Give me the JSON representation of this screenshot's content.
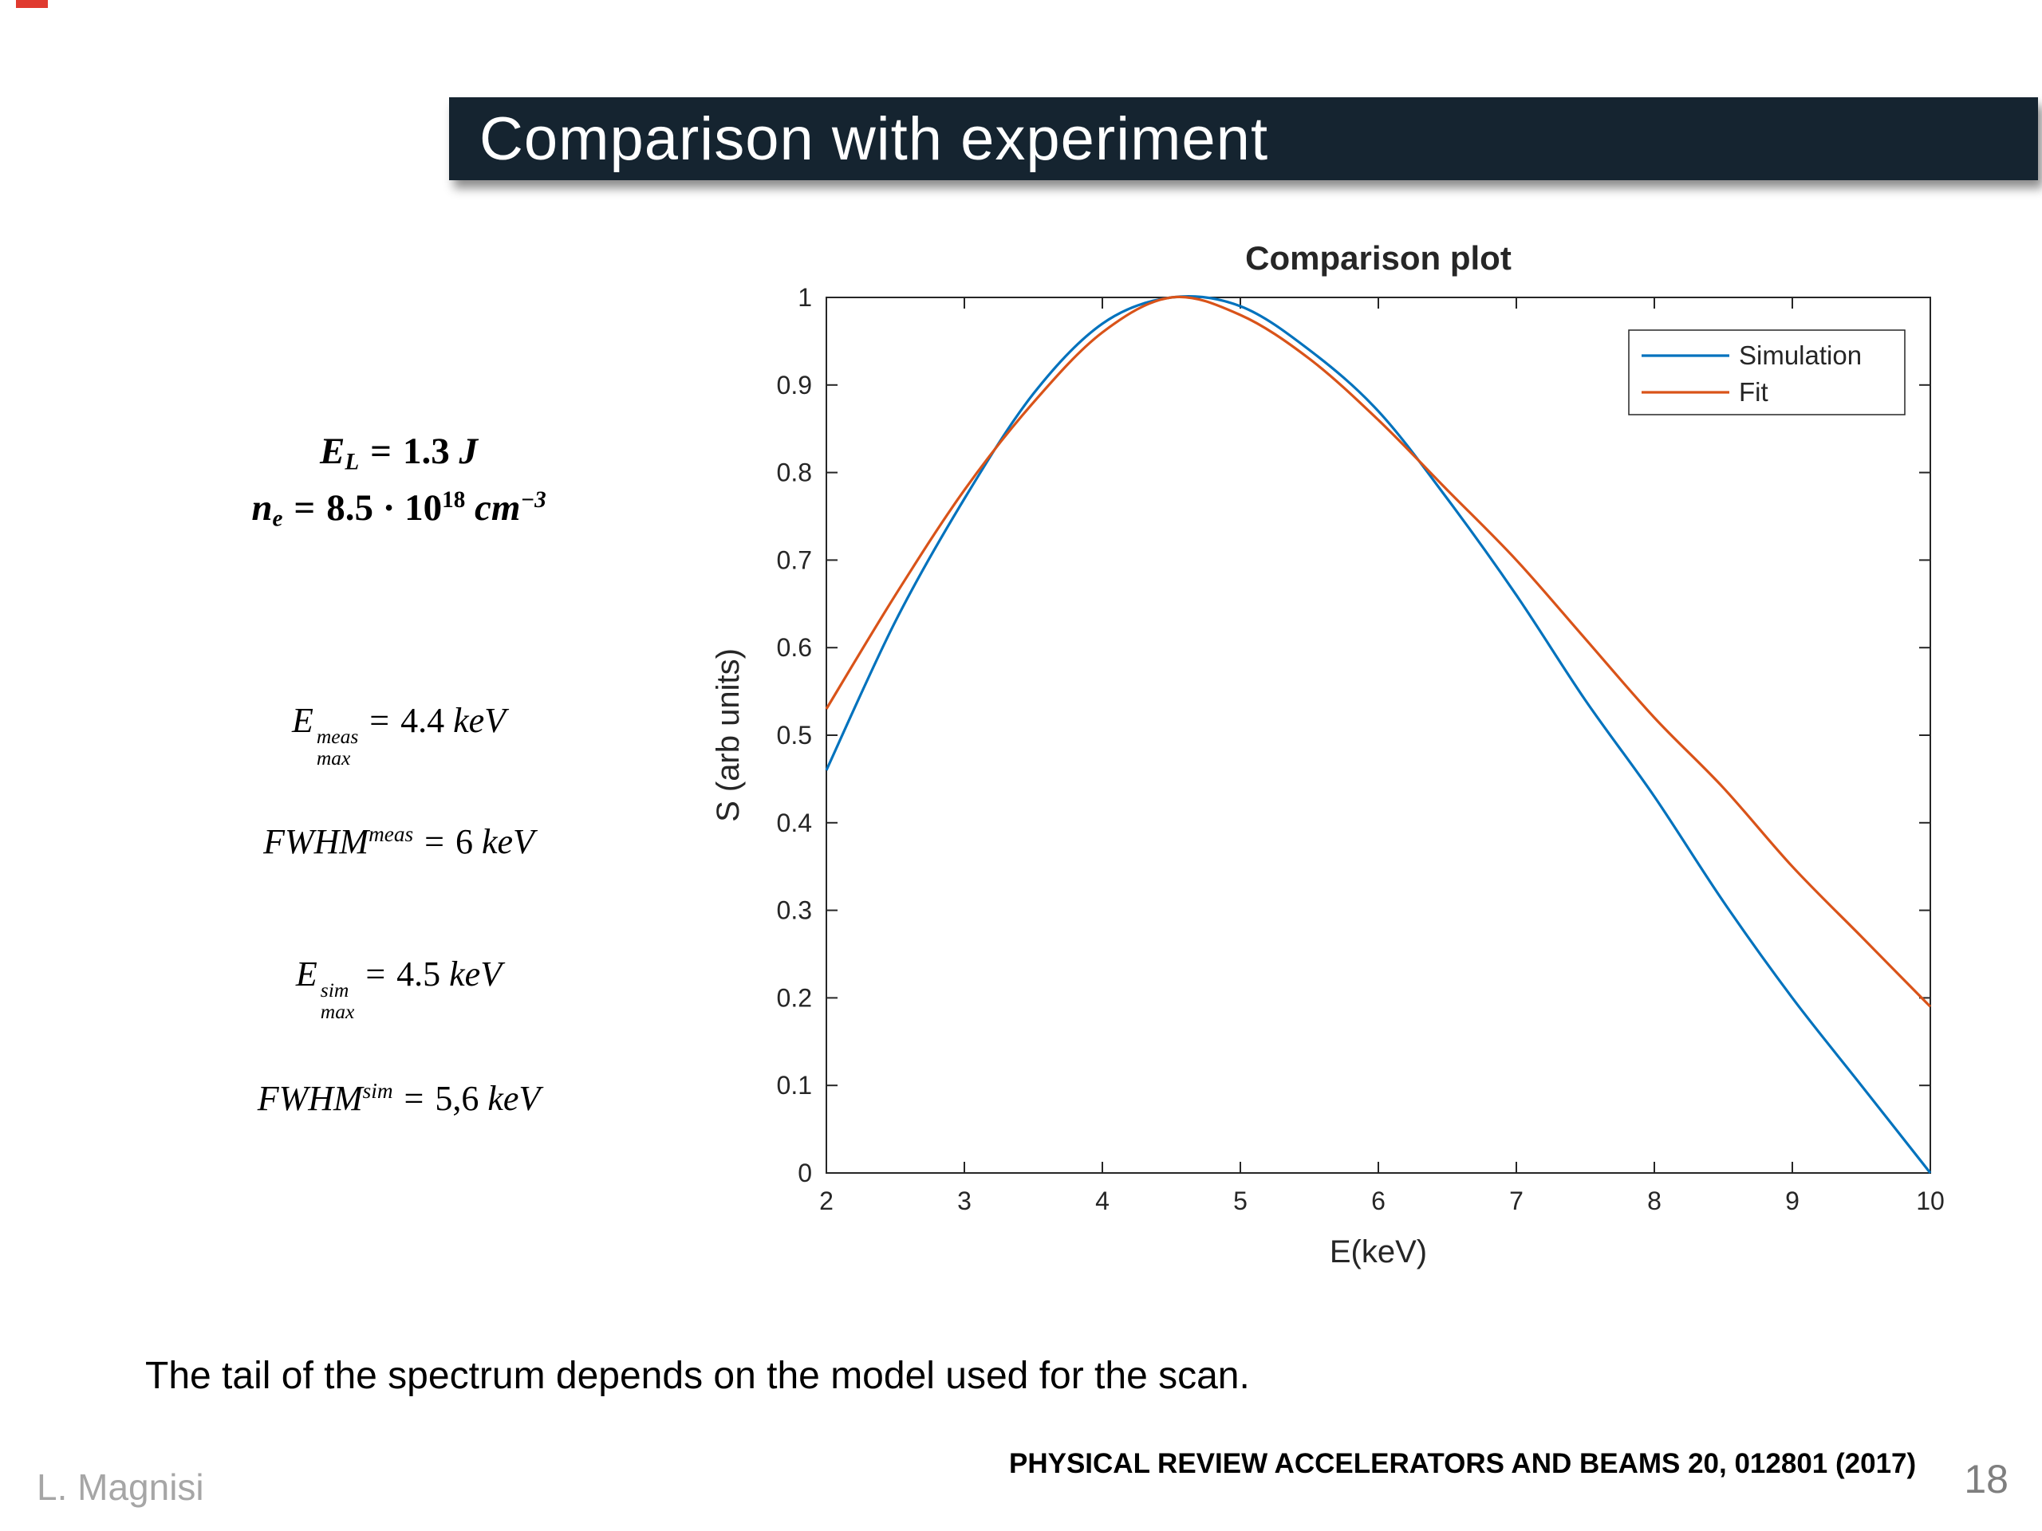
{
  "slide": {
    "title": "Comparison with experiment",
    "caption": "The tail of the spectrum depends on the model used for the scan.",
    "footer_left": "L. Magnisi",
    "footer_reference": "PHYSICAL REVIEW ACCELERATORS AND BEAMS 20, 012801 (2017)",
    "page_number": "18"
  },
  "equations": {
    "laser_energy": {
      "base": "E",
      "sub": "L",
      "eq": "=",
      "value": "1.3",
      "unit": "J"
    },
    "electron_density": {
      "base": "n",
      "sub": "e",
      "eq": "=",
      "value": "8.5 · 10",
      "exp": "18",
      "unit": "cm",
      "unit_exp": "−3"
    },
    "emax_meas": {
      "base": "E",
      "sup": "meas",
      "sub": "max",
      "eq": "=",
      "value": "4.4",
      "unit": "keV"
    },
    "fwhm_meas": {
      "base": "FWHM",
      "sup": "meas",
      "eq": "=",
      "value": "6",
      "unit": "keV"
    },
    "emax_sim": {
      "base": "E",
      "sup": "sim",
      "sub": "max",
      "eq": "=",
      "value": "4.5",
      "unit": "keV"
    },
    "fwhm_sim": {
      "base": "FWHM",
      "sup": "sim",
      "eq": "=",
      "value": "5,6",
      "unit": "keV"
    }
  },
  "chart_data": {
    "type": "line",
    "title": "Comparison plot",
    "xlabel": "E(keV)",
    "ylabel": "S (arb units)",
    "xlim": [
      2,
      10
    ],
    "ylim": [
      0,
      1
    ],
    "xticks": [
      2,
      3,
      4,
      5,
      6,
      7,
      8,
      9,
      10
    ],
    "yticks": [
      0,
      0.1,
      0.2,
      0.3,
      0.4,
      0.5,
      0.6,
      0.7,
      0.8,
      0.9,
      1
    ],
    "grid": false,
    "legend_position": "northeast",
    "x": [
      2,
      2.5,
      3,
      3.5,
      4,
      4.5,
      5,
      5.5,
      6,
      6.5,
      7,
      7.5,
      8,
      8.5,
      9,
      9.5,
      10
    ],
    "series": [
      {
        "name": "Simulation",
        "color": "#0072BD",
        "values": [
          0.46,
          0.63,
          0.77,
          0.89,
          0.97,
          1.0,
          0.99,
          0.94,
          0.87,
          0.77,
          0.66,
          0.54,
          0.43,
          0.31,
          0.2,
          0.1,
          0.0
        ]
      },
      {
        "name": "Fit",
        "color": "#D95319",
        "values": [
          0.53,
          0.66,
          0.78,
          0.88,
          0.96,
          1.0,
          0.98,
          0.93,
          0.86,
          0.78,
          0.7,
          0.61,
          0.52,
          0.44,
          0.35,
          0.27,
          0.19
        ]
      }
    ]
  }
}
